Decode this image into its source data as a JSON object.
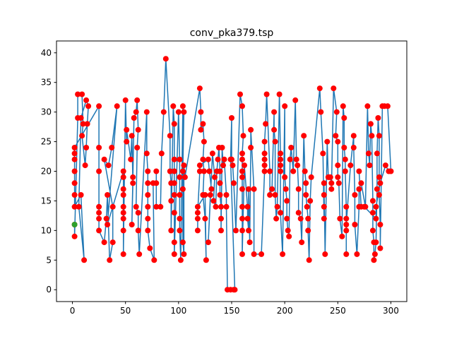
{
  "chart_data": {
    "type": "line",
    "title": "conv_pka379.tsp",
    "xlabel": "",
    "ylabel": "",
    "xlim": [
      -15,
      315
    ],
    "ylim": [
      -2,
      42
    ],
    "xticks": [
      0,
      50,
      100,
      150,
      200,
      250,
      300
    ],
    "yticks": [
      0,
      5,
      10,
      15,
      20,
      25,
      30,
      35,
      40
    ],
    "grid": false,
    "legend": "none",
    "colors": {
      "path": "#1f77b4",
      "city": "#ff0000",
      "start": "#2ca02c"
    },
    "start": {
      "x": 2,
      "y": 11
    },
    "tour": [
      [
        2,
        11
      ],
      [
        2,
        9
      ],
      [
        5,
        29
      ],
      [
        5,
        33
      ],
      [
        9,
        33
      ],
      [
        10,
        28
      ],
      [
        9,
        26
      ],
      [
        12,
        21
      ],
      [
        13,
        24
      ],
      [
        14,
        28
      ],
      [
        15,
        31
      ],
      [
        13,
        32
      ],
      [
        8,
        29
      ],
      [
        6,
        14
      ],
      [
        11,
        5
      ],
      [
        8,
        16
      ],
      [
        2,
        14
      ],
      [
        2,
        16
      ],
      [
        2,
        18
      ],
      [
        2,
        20
      ],
      [
        2,
        22
      ],
      [
        2,
        23
      ],
      [
        2,
        24
      ],
      [
        25,
        31
      ],
      [
        25,
        24
      ],
      [
        25,
        20
      ],
      [
        25,
        14
      ],
      [
        25,
        13
      ],
      [
        25,
        12
      ],
      [
        25,
        10
      ],
      [
        30,
        8
      ],
      [
        32,
        12
      ],
      [
        33,
        16
      ],
      [
        35,
        5
      ],
      [
        38,
        8
      ],
      [
        38,
        14
      ],
      [
        30,
        22
      ],
      [
        34,
        21
      ],
      [
        37,
        24
      ],
      [
        42,
        31
      ],
      [
        33,
        11
      ],
      [
        48,
        20
      ],
      [
        48,
        19
      ],
      [
        48,
        17
      ],
      [
        48,
        16
      ],
      [
        48,
        14
      ],
      [
        48,
        13
      ],
      [
        48,
        12
      ],
      [
        48,
        10
      ],
      [
        48,
        6
      ],
      [
        50,
        32
      ],
      [
        51,
        25
      ],
      [
        51,
        27
      ],
      [
        55,
        22
      ],
      [
        56,
        26
      ],
      [
        57,
        18
      ],
      [
        56,
        11
      ],
      [
        57,
        19
      ],
      [
        58,
        29
      ],
      [
        60,
        30
      ],
      [
        61,
        32
      ],
      [
        62,
        27
      ],
      [
        61,
        24
      ],
      [
        60,
        14
      ],
      [
        62,
        13
      ],
      [
        62,
        10
      ],
      [
        63,
        6
      ],
      [
        70,
        30
      ],
      [
        70,
        23
      ],
      [
        71,
        20
      ],
      [
        71,
        18
      ],
      [
        71,
        16
      ],
      [
        71,
        14
      ],
      [
        71,
        12
      ],
      [
        71,
        10
      ],
      [
        73,
        7
      ],
      [
        77,
        5
      ],
      [
        76,
        18
      ],
      [
        79,
        18
      ],
      [
        79,
        20
      ],
      [
        79,
        14
      ],
      [
        83,
        14
      ],
      [
        84,
        23
      ],
      [
        86,
        30
      ],
      [
        88,
        39
      ],
      [
        92,
        26
      ],
      [
        92,
        20
      ],
      [
        93,
        18
      ],
      [
        93,
        15
      ],
      [
        93,
        10
      ],
      [
        95,
        31
      ],
      [
        96,
        28
      ],
      [
        96,
        22
      ],
      [
        96,
        20
      ],
      [
        96,
        18
      ],
      [
        96,
        16
      ],
      [
        96,
        13
      ],
      [
        96,
        8
      ],
      [
        96,
        6
      ],
      [
        100,
        30
      ],
      [
        101,
        22
      ],
      [
        101,
        19
      ],
      [
        101,
        16
      ],
      [
        101,
        12
      ],
      [
        101,
        10
      ],
      [
        102,
        5
      ],
      [
        104,
        31
      ],
      [
        105,
        30
      ],
      [
        104,
        20
      ],
      [
        104,
        17
      ],
      [
        104,
        8
      ],
      [
        105,
        6
      ],
      [
        105,
        21
      ],
      [
        106,
        19
      ],
      [
        120,
        34
      ],
      [
        121,
        30
      ],
      [
        121,
        27
      ],
      [
        123,
        28
      ],
      [
        124,
        25
      ],
      [
        123,
        22
      ],
      [
        124,
        20
      ],
      [
        123,
        16
      ],
      [
        125,
        12
      ],
      [
        126,
        5
      ],
      [
        125,
        16
      ],
      [
        118,
        14
      ],
      [
        118,
        12
      ],
      [
        118,
        10
      ],
      [
        118,
        13
      ],
      [
        120,
        20
      ],
      [
        120,
        21
      ],
      [
        128,
        22
      ],
      [
        129,
        20
      ],
      [
        131,
        17
      ],
      [
        130,
        16
      ],
      [
        128,
        8
      ],
      [
        132,
        23
      ],
      [
        134,
        19
      ],
      [
        133,
        15
      ],
      [
        135,
        14
      ],
      [
        136,
        20
      ],
      [
        137,
        22
      ],
      [
        138,
        24
      ],
      [
        139,
        20
      ],
      [
        139,
        18
      ],
      [
        139,
        16
      ],
      [
        140,
        14
      ],
      [
        140,
        12
      ],
      [
        140,
        10
      ],
      [
        141,
        24
      ],
      [
        142,
        21
      ],
      [
        143,
        22
      ],
      [
        145,
        16
      ],
      [
        145,
        14
      ],
      [
        146,
        0
      ],
      [
        149,
        0
      ],
      [
        152,
        0
      ],
      [
        153,
        0
      ],
      [
        149,
        22
      ],
      [
        150,
        29
      ],
      [
        150,
        22
      ],
      [
        151,
        21
      ],
      [
        152,
        18
      ],
      [
        154,
        10
      ],
      [
        158,
        33
      ],
      [
        160,
        31
      ],
      [
        161,
        26
      ],
      [
        160,
        23
      ],
      [
        160,
        22
      ],
      [
        160,
        20
      ],
      [
        160,
        19
      ],
      [
        160,
        17
      ],
      [
        160,
        14
      ],
      [
        160,
        12
      ],
      [
        160,
        10
      ],
      [
        160,
        6
      ],
      [
        162,
        21
      ],
      [
        165,
        14
      ],
      [
        165,
        12
      ],
      [
        166,
        10
      ],
      [
        166,
        17
      ],
      [
        167,
        8
      ],
      [
        168,
        24
      ],
      [
        168,
        27
      ],
      [
        171,
        17
      ],
      [
        171,
        6
      ],
      [
        178,
        6
      ],
      [
        181,
        20
      ],
      [
        181,
        21
      ],
      [
        181,
        22
      ],
      [
        181,
        23
      ],
      [
        181,
        25
      ],
      [
        182,
        28
      ],
      [
        183,
        33
      ],
      [
        186,
        20
      ],
      [
        186,
        16
      ],
      [
        188,
        17
      ],
      [
        190,
        30
      ],
      [
        190,
        27
      ],
      [
        191,
        25
      ],
      [
        191,
        16
      ],
      [
        192,
        12
      ],
      [
        193,
        14
      ],
      [
        195,
        33
      ],
      [
        196,
        23
      ],
      [
        196,
        22
      ],
      [
        196,
        21
      ],
      [
        196,
        20
      ],
      [
        196,
        13
      ],
      [
        198,
        6
      ],
      [
        200,
        31
      ],
      [
        200,
        19
      ],
      [
        201,
        17
      ],
      [
        202,
        15
      ],
      [
        202,
        12
      ],
      [
        203,
        10
      ],
      [
        204,
        9
      ],
      [
        205,
        22
      ],
      [
        206,
        24
      ],
      [
        208,
        20
      ],
      [
        210,
        32
      ],
      [
        211,
        22
      ],
      [
        212,
        21
      ],
      [
        213,
        17
      ],
      [
        213,
        13
      ],
      [
        215,
        12
      ],
      [
        216,
        8
      ],
      [
        218,
        26
      ],
      [
        219,
        20
      ],
      [
        220,
        18
      ],
      [
        220,
        16
      ],
      [
        221,
        14
      ],
      [
        222,
        12
      ],
      [
        222,
        10
      ],
      [
        223,
        5
      ],
      [
        224,
        15
      ],
      [
        225,
        19
      ],
      [
        233,
        34
      ],
      [
        234,
        30
      ],
      [
        236,
        23
      ],
      [
        237,
        12
      ],
      [
        237,
        14
      ],
      [
        237,
        16
      ],
      [
        237,
        18
      ],
      [
        238,
        6
      ],
      [
        240,
        25
      ],
      [
        241,
        19
      ],
      [
        242,
        19
      ],
      [
        243,
        19
      ],
      [
        244,
        18
      ],
      [
        244,
        17
      ],
      [
        246,
        34
      ],
      [
        249,
        30
      ],
      [
        248,
        26
      ],
      [
        250,
        25
      ],
      [
        250,
        21
      ],
      [
        250,
        19
      ],
      [
        251,
        18
      ],
      [
        252,
        12
      ],
      [
        254,
        9
      ],
      [
        255,
        31
      ],
      [
        256,
        29
      ],
      [
        256,
        24
      ],
      [
        257,
        22
      ],
      [
        257,
        20
      ],
      [
        258,
        14
      ],
      [
        258,
        12
      ],
      [
        258,
        10
      ],
      [
        258,
        6
      ],
      [
        258,
        11
      ],
      [
        262,
        21
      ],
      [
        265,
        26
      ],
      [
        265,
        24
      ],
      [
        266,
        16
      ],
      [
        266,
        11
      ],
      [
        268,
        6
      ],
      [
        270,
        14
      ],
      [
        270,
        17
      ],
      [
        272,
        18
      ],
      [
        276,
        14
      ],
      [
        278,
        31
      ],
      [
        279,
        23
      ],
      [
        280,
        21
      ],
      [
        281,
        28
      ],
      [
        282,
        26
      ],
      [
        283,
        15
      ],
      [
        283,
        13
      ],
      [
        283,
        10
      ],
      [
        284,
        8
      ],
      [
        284,
        5
      ],
      [
        285,
        6
      ],
      [
        286,
        8
      ],
      [
        287,
        17
      ],
      [
        287,
        23
      ],
      [
        288,
        29
      ],
      [
        289,
        26
      ],
      [
        289,
        19
      ],
      [
        289,
        16
      ],
      [
        290,
        11
      ],
      [
        290,
        7
      ],
      [
        292,
        31
      ],
      [
        294,
        31
      ],
      [
        297,
        31
      ],
      [
        300,
        20
      ],
      [
        298,
        20
      ],
      [
        295,
        21
      ],
      [
        290,
        18
      ],
      [
        286,
        14
      ],
      [
        286,
        12
      ],
      [
        275,
        14
      ],
      [
        272,
        14
      ],
      [
        270,
        20
      ]
    ]
  }
}
